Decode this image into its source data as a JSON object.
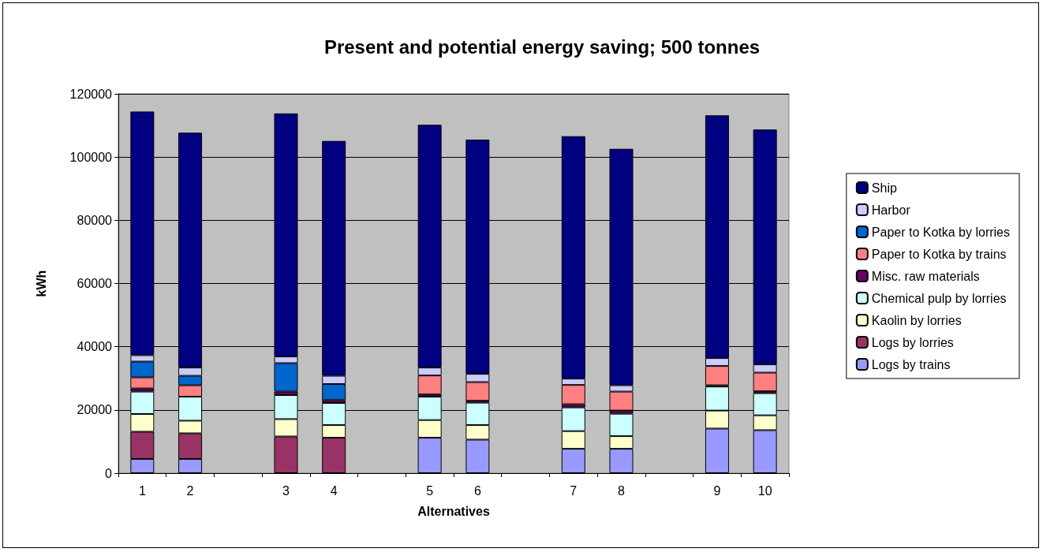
{
  "chart_data": {
    "type": "bar",
    "title": "Present and potential energy saving; 500 tonnes",
    "xlabel": "Alternatives",
    "ylabel": "kWh",
    "stacked": true,
    "grid": "y",
    "legend": "right",
    "categories": [
      "1",
      "2",
      null,
      "3",
      "4",
      null,
      "5",
      "6",
      null,
      "7",
      "8",
      null,
      "9",
      "10"
    ],
    "ylim": [
      0,
      120000
    ],
    "yticks": [
      0,
      20000,
      40000,
      60000,
      80000,
      100000,
      120000
    ],
    "series": [
      {
        "name": "Logs by trains",
        "color": "#9999ff",
        "values": [
          4500,
          4500,
          null,
          0,
          0,
          null,
          11200,
          10600,
          null,
          7700,
          7700,
          null,
          14100,
          13600
        ]
      },
      {
        "name": "Logs by lorries",
        "color": "#993366",
        "values": [
          8600,
          8100,
          null,
          11600,
          11200,
          null,
          0,
          0,
          null,
          0,
          0,
          null,
          0,
          0
        ]
      },
      {
        "name": "Kaolin by lorries",
        "color": "#ffffcc",
        "values": [
          5600,
          4000,
          null,
          5500,
          4000,
          null,
          5600,
          4600,
          null,
          5600,
          4000,
          null,
          5700,
          4700
        ]
      },
      {
        "name": "Chemical pulp by lorries",
        "color": "#ccffff",
        "values": [
          7100,
          7600,
          null,
          7600,
          7000,
          null,
          7400,
          7100,
          null,
          7500,
          7100,
          null,
          7600,
          7000
        ]
      },
      {
        "name": "Misc. raw materials",
        "color": "#660066",
        "values": [
          1000,
          0,
          null,
          1100,
          900,
          null,
          700,
          600,
          null,
          1000,
          1000,
          null,
          400,
          600
        ]
      },
      {
        "name": "Paper to Kotka by trains",
        "color": "#ff8080",
        "values": [
          3500,
          3600,
          null,
          0,
          0,
          null,
          6000,
          5900,
          null,
          6100,
          6000,
          null,
          6100,
          5900
        ]
      },
      {
        "name": "Paper to Kotka by lorries",
        "color": "#0066cc",
        "values": [
          5000,
          3000,
          null,
          9000,
          5100,
          null,
          0,
          0,
          null,
          0,
          0,
          null,
          0,
          0
        ]
      },
      {
        "name": "Harbor",
        "color": "#ccccff",
        "values": [
          2000,
          2600,
          null,
          2100,
          2600,
          null,
          2500,
          2600,
          null,
          2000,
          2000,
          null,
          2500,
          2600
        ]
      },
      {
        "name": "Ship",
        "color": "#000080",
        "values": [
          77100,
          74300,
          null,
          76900,
          74300,
          null,
          76800,
          74100,
          null,
          76700,
          74800,
          null,
          76800,
          74300
        ]
      }
    ]
  }
}
